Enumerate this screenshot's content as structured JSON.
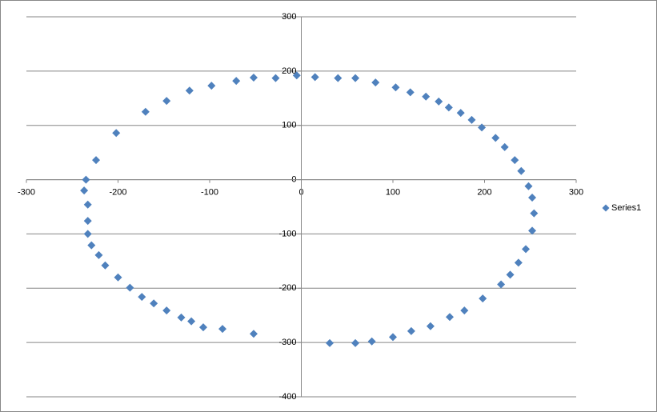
{
  "chart_data": {
    "type": "scatter",
    "series": [
      {
        "name": "Series1",
        "color": "#4F81BD",
        "x": [
          -235,
          -237,
          -233,
          -233,
          -233,
          -229,
          -221,
          -214,
          -200,
          -187,
          -174,
          -161,
          -147,
          -131,
          -120,
          -107,
          -86,
          -52,
          31,
          59,
          77,
          100,
          120,
          141,
          162,
          178,
          198,
          218,
          228,
          237,
          245,
          252,
          254,
          252,
          248,
          240,
          233,
          222,
          212,
          197,
          186,
          174,
          161,
          150,
          136,
          119,
          103,
          81,
          59,
          40,
          15,
          -5,
          -28,
          -52,
          -71,
          -98,
          -122,
          -147,
          -170,
          -202,
          -224
        ],
        "values": [
          0,
          -20,
          -46,
          -76,
          -100,
          -121,
          -139,
          -158,
          -180,
          -199,
          -216,
          -228,
          -241,
          -254,
          -261,
          -272,
          -275,
          -284,
          -301,
          -301,
          -298,
          -290,
          -279,
          -270,
          -253,
          -241,
          -219,
          -193,
          -175,
          -153,
          -128,
          -94,
          -62,
          -33,
          -12,
          16,
          36,
          60,
          77,
          96,
          110,
          123,
          133,
          144,
          153,
          161,
          170,
          179,
          187,
          187,
          189,
          192,
          187,
          188,
          182,
          173,
          164,
          145,
          125,
          86,
          36
        ]
      }
    ],
    "xlim": [
      -300,
      300
    ],
    "xticks": [
      -300,
      -200,
      -100,
      0,
      100,
      200,
      300
    ],
    "ylim": [
      -400,
      300
    ],
    "yticks": [
      -400,
      -300,
      -200,
      -100,
      0,
      100,
      200,
      300
    ],
    "grid": true,
    "legend": "right"
  }
}
